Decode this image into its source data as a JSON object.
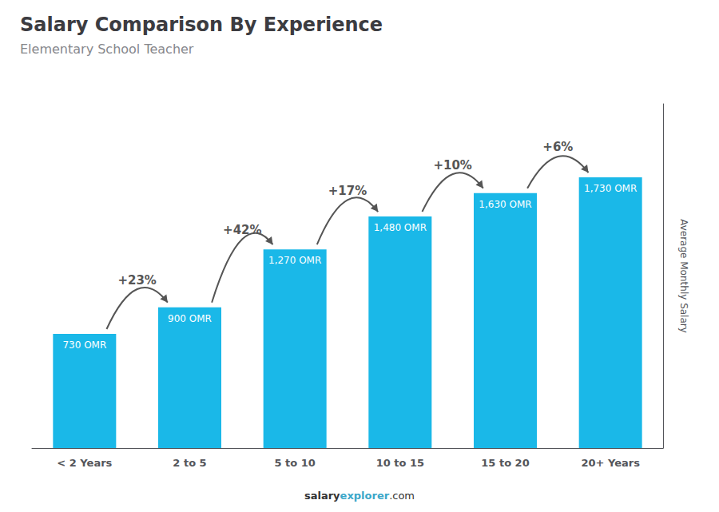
{
  "chart_data": {
    "type": "bar",
    "title": "Salary Comparison By Experience",
    "subtitle": "Elementary School Teacher",
    "ylabel": "Average Monthly Salary",
    "categories": [
      "< 2 Years",
      "2 to 5",
      "5 to 10",
      "10 to 15",
      "15 to 20",
      "20+ Years"
    ],
    "values": [
      730,
      900,
      1270,
      1480,
      1630,
      1730
    ],
    "value_labels": [
      "730 OMR",
      "900 OMR",
      "1,270 OMR",
      "1,480 OMR",
      "1,630 OMR",
      "1,730 OMR"
    ],
    "data_labels": true,
    "annotations": [
      "+23%",
      "+42%",
      "+17%",
      "+10%",
      "+6%"
    ],
    "watermark": [
      "salary",
      "explorer",
      ".com"
    ],
    "color": "#1ab8e8",
    "ylim": [
      0,
      2200
    ],
    "tick_labels": "x",
    "grid": false
  }
}
